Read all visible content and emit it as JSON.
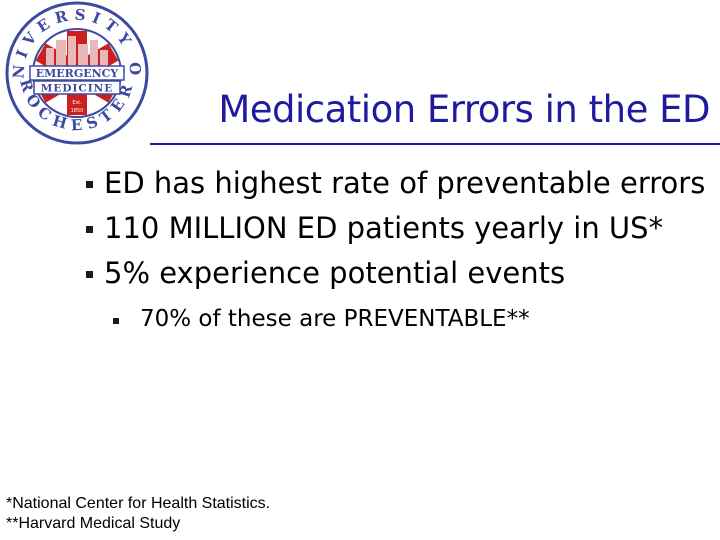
{
  "logo": {
    "ring_text": "UNIVERSITY OF ROCHESTER",
    "banner_line1": "EMERGENCY",
    "banner_line2": "MEDICINE",
    "est_label": "Est.",
    "est_year": "1850"
  },
  "title": "Medication Errors in the ED",
  "bullets": [
    "ED has highest rate of preventable errors",
    "110 MILLION ED patients yearly in US*",
    "5% experience potential events"
  ],
  "sub_bullets": [
    "70% of these are PREVENTABLE**"
  ],
  "footnotes": [
    "*National Center for Health Statistics.",
    "**Harvard Medical Study"
  ],
  "colors": {
    "title": "#1f1a9e",
    "logo_ring": "#3b4aa0",
    "logo_cross": "#cc1f1f",
    "text": "#000000"
  }
}
